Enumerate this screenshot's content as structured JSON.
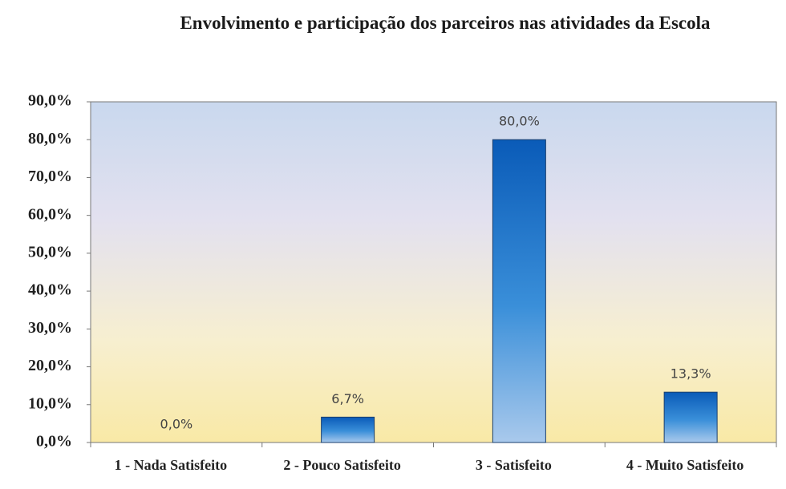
{
  "chart_data": {
    "type": "bar",
    "title": "Envolvimento e participação dos parceiros nas atividades da Escola",
    "categories": [
      "1 - Nada Satisfeito",
      "2 - Pouco Satisfeito",
      "3 - Satisfeito",
      "4 - Muito Satisfeito"
    ],
    "values": [
      0,
      6.7,
      80,
      13.3
    ],
    "value_labels": [
      "0,0%",
      "6,7%",
      "80,0%",
      "13,3%"
    ],
    "color": "#1f6fc4",
    "ylim": [
      0,
      90
    ],
    "yticks": [
      {
        "value": 0,
        "label": "0,0%"
      },
      {
        "value": 10,
        "label": "10,0%"
      },
      {
        "value": 20,
        "label": "20,0%"
      },
      {
        "value": 30,
        "label": "30,0%"
      },
      {
        "value": 40,
        "label": "40,0%"
      },
      {
        "value": 50,
        "label": "50,0%"
      },
      {
        "value": 60,
        "label": "60,0%"
      },
      {
        "value": 70,
        "label": "70,0%"
      },
      {
        "value": 80,
        "label": "80,0%"
      },
      {
        "value": 90,
        "label": "90,0%"
      }
    ],
    "grid": false
  }
}
